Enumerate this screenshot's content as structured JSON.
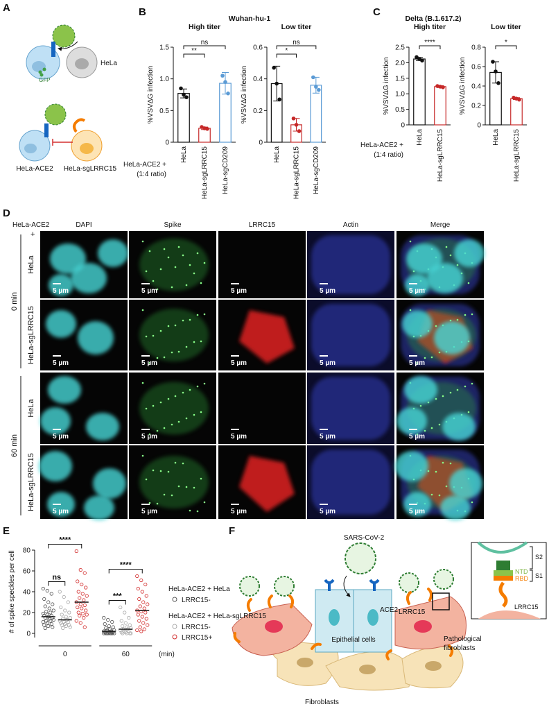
{
  "figure": {
    "panel_A": {
      "label": "A",
      "gfp": "GFP",
      "hela": "HeLa",
      "hela_ace2": "HeLa-ACE2",
      "hela_sglrrc15": "HeLa-sgLRRC15"
    },
    "panel_B": {
      "label": "B",
      "title": "Wuhan-hu-1",
      "ratio_label": [
        "HeLa-ACE2 +",
        "(1:4 ratio)"
      ]
    },
    "panel_C": {
      "label": "C",
      "title": "Delta (B.1.617.2)",
      "ratio_label": [
        "HeLa-ACE2 +",
        "(1:4 ratio)"
      ]
    },
    "panel_D": {
      "label": "D",
      "corner": "HeLa-ACE2",
      "plus": "+",
      "channels": [
        "DAPI",
        "Spike",
        "LRRC15",
        "Actin",
        "Merge"
      ],
      "times": [
        "0 min",
        "60 min"
      ],
      "rows": [
        "HeLa",
        "HeLa-sgLRRC15",
        "HeLa",
        "HeLa-sgLRRC15"
      ],
      "scale_bar": "5 µm"
    },
    "panel_E": {
      "label": "E"
    },
    "panel_F": {
      "label": "F",
      "virus": "SARS-CoV-2",
      "ace2": "ACE2",
      "epithelial": "Epithelial cells",
      "lrrc15": "LRRC15",
      "pathological": [
        "Pathological",
        "fibroblasts"
      ],
      "fibroblasts": "Fibroblasts",
      "inset": {
        "s2": "S2",
        "s1": "S1",
        "ntd": "NTD",
        "rbd": "RBD",
        "lrrc15": "LRRC15"
      }
    }
  },
  "chart_data": [
    {
      "type": "bar",
      "title": "High titer",
      "y_label": "%VSVΔG infection",
      "categories": [
        "HeLa",
        "HeLa-sgLRRC15",
        "HeLa-sgCD209"
      ],
      "values": [
        0.77,
        0.22,
        0.93
      ],
      "errors": [
        0.07,
        0.02,
        0.17
      ],
      "points": [
        [
          0.85,
          0.75,
          0.71
        ],
        [
          0.24,
          0.22,
          0.21
        ],
        [
          1.05,
          0.95,
          0.77
        ]
      ],
      "colors": [
        "#111111",
        "#c62828",
        "#5b9bd5"
      ],
      "ylim": [
        0,
        1.5
      ],
      "yticks": [
        0,
        0.5,
        {
          "value": 1,
          "label": "1.0"
        },
        1.5
      ],
      "annotations": [
        {
          "text": "**",
          "pair": [
            0,
            1
          ]
        },
        {
          "text": "ns",
          "pair": [
            0,
            2
          ]
        }
      ]
    },
    {
      "type": "bar",
      "title": "Low titer",
      "y_label": "%VSVΔG infection",
      "categories": [
        "HeLa",
        "HeLa-sgLRRC15",
        "HeLa-sgCD209"
      ],
      "values": [
        0.37,
        0.11,
        0.36
      ],
      "errors": [
        0.11,
        0.04,
        0.05
      ],
      "points": [
        [
          0.47,
          0.37,
          0.27
        ],
        [
          0.15,
          0.11,
          0.07
        ],
        [
          0.41,
          0.35,
          0.33
        ]
      ],
      "colors": [
        "#111111",
        "#c62828",
        "#5b9bd5"
      ],
      "ylim": [
        0,
        0.6
      ],
      "yticks": [
        0,
        0.2,
        0.4,
        0.6
      ],
      "annotations": [
        {
          "text": "*",
          "pair": [
            0,
            1
          ]
        },
        {
          "text": "ns",
          "pair": [
            0,
            2
          ]
        }
      ]
    },
    {
      "type": "bar",
      "title": "High titer",
      "y_label": "%VSVΔG infection",
      "categories": [
        "HeLa",
        "HeLa-sgLRRC15"
      ],
      "values": [
        2.12,
        1.23
      ],
      "errors": [
        0.05,
        0.03
      ],
      "points": [
        [
          2.18,
          2.12,
          2.07
        ],
        [
          1.25,
          1.23,
          1.21
        ]
      ],
      "colors": [
        "#111111",
        "#c62828"
      ],
      "ylim": [
        0,
        2.5
      ],
      "yticks": [
        0,
        0.5,
        {
          "value": 1,
          "label": "1.0"
        },
        1.5,
        {
          "value": 2,
          "label": "2.0"
        },
        2.5
      ],
      "annotations": [
        {
          "text": "****",
          "pair": [
            0,
            1
          ]
        }
      ]
    },
    {
      "type": "bar",
      "title": "Low titer",
      "y_label": "%VSVΔG infection",
      "categories": [
        "HeLa",
        "HeLa-sgLRRC15"
      ],
      "values": [
        0.54,
        0.27
      ],
      "errors": [
        0.11,
        0.01
      ],
      "points": [
        [
          0.65,
          0.55,
          0.43
        ],
        [
          0.28,
          0.27,
          0.26
        ]
      ],
      "colors": [
        "#111111",
        "#c62828"
      ],
      "ylim": [
        0,
        0.8
      ],
      "yticks": [
        0,
        0.2,
        0.4,
        0.6,
        0.8
      ],
      "annotations": [
        {
          "text": "*",
          "pair": [
            0,
            1
          ]
        }
      ]
    },
    {
      "type": "dot",
      "y_label": "# of spike speckles per cell",
      "categories": [
        "0",
        "60"
      ],
      "x_unit": "(min)",
      "ylim": [
        0,
        80
      ],
      "yticks": [
        0,
        20,
        40,
        60,
        80
      ],
      "legend_groups": [
        "HeLa-ACE2 + HeLa",
        "HeLa-ACE2 + HeLa-sgLRRC15"
      ],
      "series": [
        {
          "name": "LRRC15-",
          "group": 0,
          "color": "#555555",
          "values": [
            [
              43,
              41,
              38,
              33,
              30,
              28,
              26,
              24,
              22,
              21,
              20,
              19,
              18,
              17,
              17,
              16,
              15,
              15,
              14,
              13,
              12,
              12,
              11,
              10,
              9,
              8,
              7,
              6,
              5
            ],
            [
              15,
              13,
              11,
              9,
              7,
              6,
              5,
              4,
              3,
              3,
              2,
              2,
              2,
              1,
              1,
              1,
              1,
              0,
              0,
              0,
              0,
              0,
              0,
              0,
              0
            ]
          ],
          "means": [
            16,
            2
          ]
        },
        {
          "name": "LRRC15-",
          "group": 1,
          "color": "#aaaaaa",
          "values": [
            [
              40,
              35,
              30,
              25,
              22,
              20,
              18,
              16,
              15,
              14,
              13,
              12,
              11,
              11,
              10,
              9,
              8,
              8,
              7,
              6,
              5
            ],
            [
              25,
              20,
              15,
              12,
              10,
              8,
              7,
              6,
              5,
              4,
              4,
              3,
              2,
              2,
              1,
              1,
              0,
              0,
              0,
              0
            ]
          ],
          "means": [
            13,
            4
          ]
        },
        {
          "name": "LRRC15+",
          "group": 1,
          "color": "#d32f2f",
          "values": [
            [
              79,
              61,
              58,
              50,
              47,
              44,
              40,
              38,
              36,
              34,
              32,
              30,
              28,
              27,
              25,
              24,
              22,
              20,
              19,
              18,
              17,
              15,
              12,
              10,
              6
            ],
            [
              55,
              51,
              47,
              43,
              40,
              36,
              33,
              30,
              28,
              26,
              24,
              22,
              21,
              20,
              18,
              16,
              14,
              12,
              10,
              8,
              6,
              4,
              3,
              2
            ]
          ],
          "means": [
            30,
            22
          ]
        }
      ],
      "annotations": [
        {
          "text": "****",
          "category": 0,
          "pair": [
            0,
            2
          ]
        },
        {
          "text": "ns",
          "category": 0,
          "pair": [
            0,
            1
          ]
        },
        {
          "text": "****",
          "category": 1,
          "pair": [
            0,
            2
          ]
        },
        {
          "text": "***",
          "category": 1,
          "pair": [
            0,
            1
          ]
        }
      ]
    }
  ]
}
